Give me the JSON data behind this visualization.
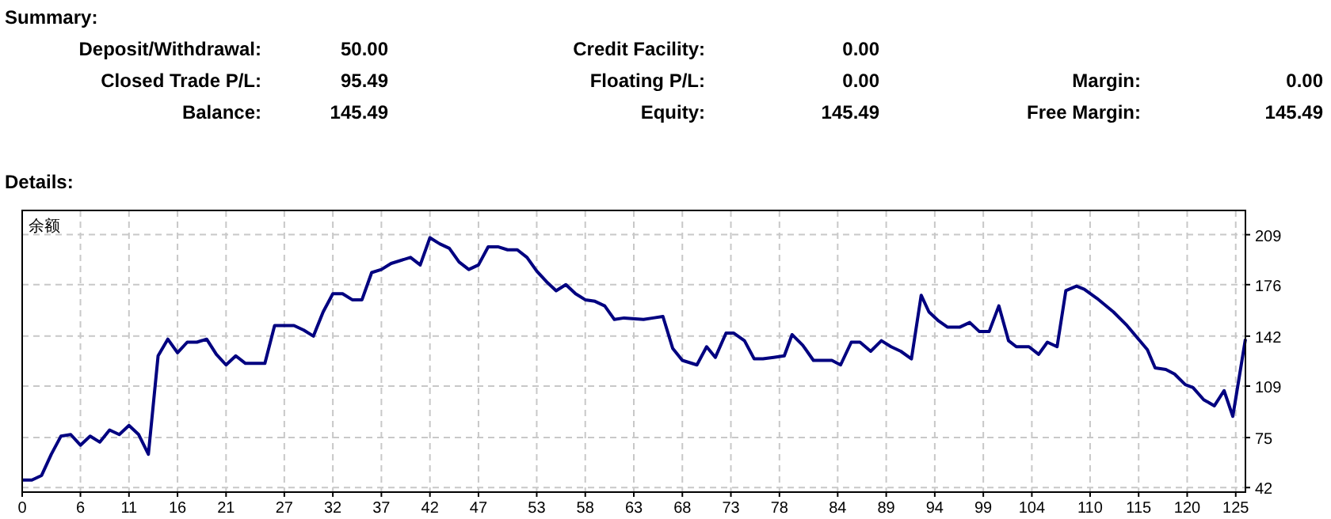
{
  "chart_data": [
    {
      "type": "other",
      "title": "Summary:",
      "annotations": [
        "Deposit/Withdrawal:",
        "50.00",
        "Credit Facility:",
        "0.00",
        "Closed Trade P/L:",
        "95.49",
        "Floating P/L:",
        "0.00",
        "Margin:",
        "0.00",
        "Balance:",
        "145.49",
        "Equity:",
        "145.49",
        "Free Margin:",
        "145.49"
      ]
    },
    {
      "type": "line",
      "title": "Details:",
      "annotations": [
        "余额"
      ],
      "grid": true,
      "line_style": "solid",
      "tick_labels": "xy",
      "xlim": [
        0,
        126
      ],
      "xticks": [
        0,
        6,
        11,
        16,
        21,
        27,
        32,
        37,
        42,
        47,
        53,
        58,
        63,
        68,
        73,
        78,
        84,
        89,
        94,
        99,
        104,
        110,
        115,
        120,
        125
      ],
      "ylim": [
        39,
        225
      ],
      "yticks": [
        42,
        75,
        109,
        142,
        176,
        209
      ],
      "series": [
        {
          "color": "#000080",
          "x": [
            0,
            1,
            2,
            3,
            4,
            5,
            6,
            7,
            8,
            9,
            10,
            11,
            12,
            13,
            14,
            15,
            16,
            17,
            18,
            19,
            20,
            21,
            22,
            23,
            25,
            26,
            28,
            29,
            30,
            31,
            32,
            33,
            34,
            35,
            36,
            37,
            38,
            40,
            41,
            42,
            43,
            44,
            45,
            46,
            47,
            48,
            49,
            50,
            51,
            52,
            53,
            54,
            55,
            56,
            57,
            58,
            59,
            60,
            61,
            62,
            64,
            65,
            66,
            67,
            68,
            69.5,
            70.5,
            71.4,
            72.5,
            73.3,
            74.4,
            75.4,
            76.3,
            77.4,
            78.5,
            79.3,
            80.4,
            81.5,
            83.4,
            84.3,
            85.4,
            86.3,
            87.4,
            88.5,
            89.5,
            90.5,
            91.6,
            92.6,
            93.4,
            94.4,
            95.3,
            96.6,
            97.6,
            98.6,
            99.6,
            100.6,
            101.6,
            102.4,
            103.7,
            104.7,
            105.6,
            106.6,
            107.5,
            108.6,
            109.4,
            110.7,
            112.4,
            113.8,
            115.9,
            116.7,
            117.8,
            118.7,
            119.8,
            120.6,
            121.7,
            122.8,
            123.8,
            124.7,
            126
          ],
          "values": [
            47,
            47,
            50,
            64,
            76,
            77,
            70,
            76,
            72,
            80,
            77,
            83,
            77,
            64,
            129,
            140,
            131,
            138,
            138,
            140,
            130,
            123,
            129,
            124,
            124,
            149,
            149,
            146,
            142,
            158,
            170,
            170,
            166,
            166,
            184,
            186,
            190,
            194,
            189,
            207,
            203,
            200,
            191,
            186,
            189,
            201,
            201,
            199,
            199,
            194,
            185,
            178,
            172,
            176,
            170,
            166,
            165,
            162,
            153,
            154,
            153,
            154,
            155,
            134,
            126,
            123,
            135,
            128,
            144,
            144,
            139,
            127,
            127,
            128,
            129,
            143,
            136,
            126,
            126,
            123,
            138,
            138,
            132,
            139,
            135,
            132,
            127,
            169,
            158,
            152,
            148,
            148,
            151,
            145,
            145,
            162,
            139,
            135,
            135,
            130,
            138,
            135,
            172,
            175,
            173,
            167,
            158,
            149,
            133,
            121,
            120,
            117,
            110,
            108,
            100,
            96,
            106,
            89,
            140
          ]
        }
      ]
    }
  ]
}
